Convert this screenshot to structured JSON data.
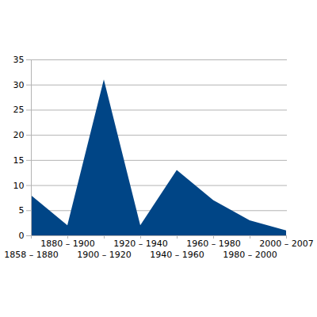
{
  "chart_data": {
    "type": "area",
    "categories": [
      "1858 – 1880",
      "1880 – 1900",
      "1900 – 1920",
      "1920 – 1940",
      "1940 – 1960",
      "1960 – 1980",
      "1980 – 2000",
      "2000 – 2007"
    ],
    "values": [
      8,
      2,
      31,
      2,
      13,
      7,
      3,
      1
    ],
    "color": "#004586",
    "ylim": [
      0,
      35
    ],
    "yticks": [
      0,
      5,
      10,
      15,
      20,
      25,
      30,
      35
    ],
    "grid": true
  }
}
